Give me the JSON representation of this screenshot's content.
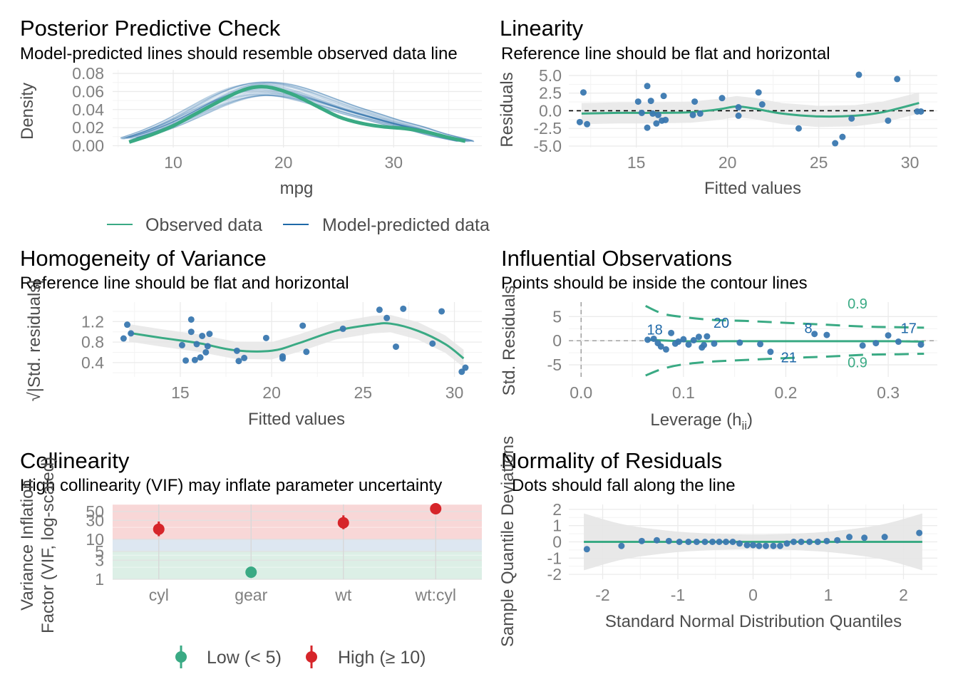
{
  "colors": {
    "observed": "#3aaa84",
    "predicted": "#1f69a8",
    "point": "#3a78b0",
    "loess": "#3aaa84",
    "band": "#e6e6e6",
    "high": "#d6252a",
    "low": "#3aaa84",
    "redZone": "#f8d7d7",
    "blueZone": "#dde7f1",
    "greenZone": "#dcefe6",
    "grid": "#ebebeb"
  },
  "ppc": {
    "title": "Posterior Predictive Check",
    "subtitle": "Model-predicted lines should resemble observed data line",
    "xlabel": "mpg",
    "ylabel": "Density",
    "yticks": [
      "0.00",
      "0.02",
      "0.04",
      "0.06",
      "0.08"
    ],
    "xticks": [
      "10",
      "20",
      "30"
    ],
    "legend": {
      "observed": "Observed data",
      "predicted": "Model-predicted data"
    },
    "chart_data": {
      "type": "line",
      "xlim": [
        4.5,
        38.0
      ],
      "ylim": [
        -0.002,
        0.084
      ],
      "observed": [
        [
          6.0,
          0.004
        ],
        [
          8.0,
          0.012
        ],
        [
          10.0,
          0.022
        ],
        [
          12.0,
          0.035
        ],
        [
          14.0,
          0.048
        ],
        [
          16.0,
          0.06
        ],
        [
          17.5,
          0.065
        ],
        [
          19.0,
          0.064
        ],
        [
          21.0,
          0.056
        ],
        [
          23.0,
          0.044
        ],
        [
          25.0,
          0.032
        ],
        [
          27.0,
          0.025
        ],
        [
          29.0,
          0.021
        ],
        [
          31.0,
          0.019
        ],
        [
          33.0,
          0.015
        ],
        [
          35.0,
          0.009
        ],
        [
          36.5,
          0.005
        ]
      ],
      "predicted": [
        [
          6.0,
          0.008
        ],
        [
          8.0,
          0.016
        ],
        [
          10.0,
          0.026
        ],
        [
          12.0,
          0.038
        ],
        [
          14.0,
          0.05
        ],
        [
          16.0,
          0.059
        ],
        [
          18.0,
          0.063
        ],
        [
          20.0,
          0.061
        ],
        [
          22.0,
          0.055
        ],
        [
          24.0,
          0.047
        ],
        [
          26.0,
          0.039
        ],
        [
          28.0,
          0.032
        ],
        [
          30.0,
          0.025
        ],
        [
          32.0,
          0.019
        ],
        [
          34.0,
          0.012
        ],
        [
          36.5,
          0.005
        ]
      ]
    }
  },
  "linearity": {
    "title": "Linearity",
    "subtitle": "Reference line should be flat and horizontal",
    "xlabel": "Fitted values",
    "ylabel": "Residuals",
    "xticks": [
      "15",
      "20",
      "25",
      "30"
    ],
    "yticks": [
      "-5.0",
      "-2.5",
      "0.0",
      "2.5",
      "5.0"
    ],
    "chart_data": {
      "type": "scatter",
      "xlim": [
        11.3,
        31.5
      ],
      "ylim": [
        -5.2,
        5.8
      ],
      "points": [
        [
          11.9,
          -1.6
        ],
        [
          12.1,
          2.6
        ],
        [
          12.3,
          -1.9
        ],
        [
          15.1,
          1.3
        ],
        [
          15.3,
          -0.3
        ],
        [
          15.6,
          3.5
        ],
        [
          15.6,
          -2.4
        ],
        [
          15.8,
          1.4
        ],
        [
          15.9,
          -0.4
        ],
        [
          16.1,
          -1.8
        ],
        [
          16.2,
          -0.6
        ],
        [
          16.4,
          -1.4
        ],
        [
          16.5,
          2.1
        ],
        [
          16.6,
          -1.3
        ],
        [
          18.1,
          -0.6
        ],
        [
          18.2,
          1.3
        ],
        [
          18.5,
          -0.4
        ],
        [
          19.7,
          1.8
        ],
        [
          20.6,
          -0.7
        ],
        [
          20.6,
          0.5
        ],
        [
          21.7,
          2.6
        ],
        [
          21.9,
          0.9
        ],
        [
          23.9,
          -2.5
        ],
        [
          25.9,
          -4.6
        ],
        [
          26.3,
          -3.7
        ],
        [
          26.8,
          -1.1
        ],
        [
          27.2,
          5.1
        ],
        [
          28.8,
          -1.4
        ],
        [
          29.3,
          4.5
        ],
        [
          30.4,
          -0.1
        ],
        [
          30.6,
          -0.1
        ]
      ],
      "loess": [
        [
          12.0,
          -0.4
        ],
        [
          14.0,
          -0.3
        ],
        [
          16.0,
          -0.3
        ],
        [
          18.0,
          -0.2
        ],
        [
          19.5,
          0.2
        ],
        [
          20.5,
          0.6
        ],
        [
          21.5,
          0.3
        ],
        [
          23.0,
          -0.4
        ],
        [
          25.0,
          -0.8
        ],
        [
          27.0,
          -0.7
        ],
        [
          28.5,
          -0.2
        ],
        [
          30.5,
          1.1
        ]
      ]
    }
  },
  "homog": {
    "title": "Homogeneity of Variance",
    "subtitle": "Reference line should be flat and horizontal",
    "xlabel": "Fitted values",
    "ylabel": "√|Std. residuals|",
    "xticks": [
      "15",
      "20",
      "25",
      "30"
    ],
    "yticks": [
      "0.4",
      "0.8",
      "1.2"
    ],
    "chart_data": {
      "type": "scatter",
      "xlim": [
        11.3,
        31.5
      ],
      "ylim": [
        0.12,
        1.58
      ],
      "points": [
        [
          11.9,
          0.87
        ],
        [
          12.1,
          1.14
        ],
        [
          12.3,
          0.97
        ],
        [
          15.1,
          0.74
        ],
        [
          15.3,
          0.44
        ],
        [
          15.6,
          1.0
        ],
        [
          15.6,
          1.24
        ],
        [
          15.8,
          0.45
        ],
        [
          15.9,
          0.76
        ],
        [
          16.1,
          0.5
        ],
        [
          16.2,
          0.92
        ],
        [
          16.4,
          0.6
        ],
        [
          16.5,
          0.72
        ],
        [
          16.6,
          0.96
        ],
        [
          18.1,
          0.63
        ],
        [
          18.2,
          0.43
        ],
        [
          18.5,
          0.49
        ],
        [
          19.7,
          0.88
        ],
        [
          20.6,
          0.52
        ],
        [
          20.6,
          0.48
        ],
        [
          21.7,
          1.12
        ],
        [
          21.9,
          0.61
        ],
        [
          23.9,
          1.06
        ],
        [
          25.9,
          1.43
        ],
        [
          26.3,
          1.27
        ],
        [
          26.8,
          0.71
        ],
        [
          27.2,
          1.45
        ],
        [
          28.8,
          0.77
        ],
        [
          29.3,
          1.4
        ],
        [
          30.4,
          0.22
        ],
        [
          30.6,
          0.3
        ]
      ],
      "loess": [
        [
          12.2,
          0.98
        ],
        [
          14.0,
          0.88
        ],
        [
          16.0,
          0.78
        ],
        [
          18.0,
          0.64
        ],
        [
          20.0,
          0.63
        ],
        [
          21.5,
          0.78
        ],
        [
          23.5,
          1.02
        ],
        [
          25.5,
          1.14
        ],
        [
          26.5,
          1.16
        ],
        [
          28.0,
          1.02
        ],
        [
          29.5,
          0.76
        ],
        [
          30.5,
          0.48
        ]
      ]
    }
  },
  "influ": {
    "title": "Influential Observations",
    "subtitle": "Points should be inside the contour lines",
    "xlabel": "Leverage (h",
    "xlabel_sub": "ii",
    "xlabel_close": ")",
    "ylabel": "Std. Residuals",
    "xticks": [
      "0.0",
      "0.1",
      "0.2",
      "0.3"
    ],
    "yticks": [
      "-5",
      "0",
      "5"
    ],
    "contour_label": "0.9",
    "chart_data": {
      "type": "scatter",
      "xlim": [
        -0.012,
        0.348
      ],
      "ylim": [
        -7.5,
        8.0
      ],
      "points": [
        [
          0.065,
          0.2
        ],
        [
          0.071,
          0.4
        ],
        [
          0.075,
          -0.5
        ],
        [
          0.078,
          -1.2
        ],
        [
          0.083,
          -1.8
        ],
        [
          0.088,
          1.6
        ],
        [
          0.092,
          -0.6
        ],
        [
          0.095,
          -0.2
        ],
        [
          0.1,
          0.3
        ],
        [
          0.105,
          -0.8
        ],
        [
          0.11,
          0.1
        ],
        [
          0.115,
          0.8
        ],
        [
          0.118,
          -1.4
        ],
        [
          0.12,
          -0.9
        ],
        [
          0.123,
          0.9
        ],
        [
          0.13,
          -0.6
        ],
        [
          0.155,
          -0.4
        ],
        [
          0.175,
          -0.7
        ],
        [
          0.185,
          -2.3
        ],
        [
          0.228,
          1.4
        ],
        [
          0.24,
          1.2
        ],
        [
          0.275,
          -1.0
        ],
        [
          0.288,
          -0.5
        ],
        [
          0.3,
          1.1
        ],
        [
          0.31,
          -0.2
        ],
        [
          0.332,
          -0.8
        ]
      ],
      "labels": [
        [
          "18",
          0.072,
          1.3
        ],
        [
          "20",
          0.137,
          2.7
        ],
        [
          "8",
          0.222,
          1.6
        ],
        [
          "17",
          0.32,
          1.6
        ],
        [
          "21",
          0.203,
          -4.5
        ]
      ],
      "loess": [
        [
          0.065,
          0.2
        ],
        [
          0.1,
          -0.1
        ],
        [
          0.15,
          -0.1
        ],
        [
          0.2,
          -0.1
        ],
        [
          0.25,
          -0.1
        ],
        [
          0.3,
          -0.1
        ],
        [
          0.335,
          -0.2
        ]
      ],
      "contour_upper": [
        [
          0.063,
          7.2
        ],
        [
          0.08,
          5.6
        ],
        [
          0.1,
          4.9
        ],
        [
          0.13,
          4.3
        ],
        [
          0.16,
          4.1
        ],
        [
          0.2,
          3.7
        ],
        [
          0.24,
          3.3
        ],
        [
          0.28,
          2.9
        ],
        [
          0.31,
          2.8
        ],
        [
          0.335,
          2.7
        ]
      ],
      "contour_lower": [
        [
          0.063,
          -7.2
        ],
        [
          0.08,
          -5.8
        ],
        [
          0.1,
          -4.9
        ],
        [
          0.13,
          -4.3
        ],
        [
          0.16,
          -4.0
        ],
        [
          0.2,
          -3.6
        ],
        [
          0.24,
          -3.3
        ],
        [
          0.28,
          -2.9
        ],
        [
          0.31,
          -2.8
        ],
        [
          0.335,
          -2.7
        ]
      ],
      "contour_label_pos": [
        [
          0.27,
          6.7
        ],
        [
          0.27,
          -5.5
        ]
      ]
    }
  },
  "colli": {
    "title": "Collinearity",
    "subtitle": "High collinearity (VIF) may inflate parameter uncertainty",
    "ylabel1": "Variance Inflation",
    "ylabel2": "Factor (VIF, log-scaled)",
    "yticks": [
      "1",
      "3",
      "5",
      "10",
      "30",
      "50"
    ],
    "legend": {
      "low": "Low (< 5)",
      "high": "High (≥ 10)"
    },
    "chart_data": {
      "type": "scatter",
      "categories": [
        "cyl",
        "gear",
        "wt",
        "wt:cyl"
      ],
      "vif": [
        18,
        1.5,
        26,
        65
      ],
      "ci_low": [
        12,
        1.2,
        18,
        48
      ],
      "ci_high": [
        28,
        2.0,
        40,
        90
      ],
      "level": [
        "high",
        "low",
        "high",
        "high"
      ],
      "ylim": [
        1,
        75
      ]
    }
  },
  "normal": {
    "title": "Normality of Residuals",
    "subtitle": "Dots should fall along the line",
    "xlabel": "Standard Normal Distribution Quantiles",
    "ylabel": "Sample Quantile Deviations",
    "xticks": [
      "-2",
      "-1",
      "0",
      "1",
      "2"
    ],
    "yticks": [
      "-2",
      "-1",
      "0",
      "1",
      "2"
    ],
    "chart_data": {
      "type": "scatter",
      "xlim": [
        -2.45,
        2.45
      ],
      "ylim": [
        -2.3,
        2.3
      ],
      "points": [
        [
          -2.21,
          -0.45
        ],
        [
          -1.75,
          -0.25
        ],
        [
          -1.48,
          0.05
        ],
        [
          -1.28,
          0.1
        ],
        [
          -1.12,
          0.05
        ],
        [
          -0.98,
          0.0
        ],
        [
          -0.86,
          0.0
        ],
        [
          -0.75,
          0.0
        ],
        [
          -0.64,
          0.0
        ],
        [
          -0.54,
          0.0
        ],
        [
          -0.45,
          0.0
        ],
        [
          -0.36,
          0.0
        ],
        [
          -0.27,
          0.0
        ],
        [
          -0.18,
          -0.1
        ],
        [
          -0.08,
          -0.2
        ],
        [
          0.0,
          -0.2
        ],
        [
          0.08,
          -0.25
        ],
        [
          0.17,
          -0.25
        ],
        [
          0.27,
          -0.25
        ],
        [
          0.36,
          -0.25
        ],
        [
          0.45,
          -0.1
        ],
        [
          0.54,
          0.0
        ],
        [
          0.64,
          0.0
        ],
        [
          0.75,
          0.0
        ],
        [
          0.86,
          0.0
        ],
        [
          0.98,
          0.05
        ],
        [
          1.12,
          0.1
        ],
        [
          1.28,
          0.3
        ],
        [
          1.48,
          0.25
        ],
        [
          1.75,
          0.3
        ],
        [
          2.21,
          0.55
        ]
      ],
      "band_half": [
        [
          -2.25,
          1.75
        ],
        [
          -1.75,
          1.1
        ],
        [
          -1.25,
          0.75
        ],
        [
          -0.75,
          0.55
        ],
        [
          0,
          0.45
        ],
        [
          0.75,
          0.55
        ],
        [
          1.25,
          0.75
        ],
        [
          1.75,
          1.1
        ],
        [
          2.25,
          1.75
        ]
      ]
    }
  }
}
